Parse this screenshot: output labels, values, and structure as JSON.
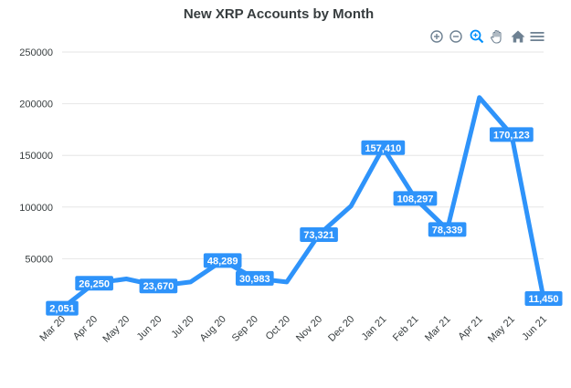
{
  "chart_data": {
    "type": "line",
    "title": "New XRP Accounts by Month",
    "xlabel": "",
    "ylabel": "",
    "categories": [
      "Mar 20",
      "Apr 20",
      "May 20",
      "Jun 20",
      "Jul 20",
      "Aug 20",
      "Sep 20",
      "Oct 20",
      "Nov 20",
      "Dec 20",
      "Jan 21",
      "Feb 21",
      "Mar 21",
      "Apr 21",
      "May 21",
      "Jun 21"
    ],
    "series": [
      {
        "values": [
          2051,
          26250,
          30500,
          23670,
          27500,
          48289,
          30983,
          27500,
          73321,
          101000,
          157410,
          108297,
          78339,
          206000,
          170123,
          11450
        ]
      }
    ],
    "data_labels": [
      {
        "index": 0,
        "text": "2,051"
      },
      {
        "index": 1,
        "text": "26,250"
      },
      {
        "index": 3,
        "text": "23,670"
      },
      {
        "index": 5,
        "text": "48,289"
      },
      {
        "index": 6,
        "text": "30,983"
      },
      {
        "index": 8,
        "text": "73,321"
      },
      {
        "index": 10,
        "text": "157,410"
      },
      {
        "index": 11,
        "text": "108,297"
      },
      {
        "index": 12,
        "text": "78,339"
      },
      {
        "index": 14,
        "text": "170,123"
      },
      {
        "index": 15,
        "text": "11,450"
      }
    ],
    "yticks": [
      50000,
      100000,
      150000,
      200000,
      250000
    ],
    "ylim": [
      0,
      250000
    ],
    "grid": true,
    "line_color": "#2e93fa"
  },
  "toolbar": {
    "tools": [
      "zoom-in-icon",
      "zoom-out-icon",
      "selection-zoom-icon",
      "pan-hand-icon",
      "reset-home-icon",
      "menu-icon"
    ],
    "active_color": "#008ffb",
    "icon_color": "#6e8192"
  }
}
